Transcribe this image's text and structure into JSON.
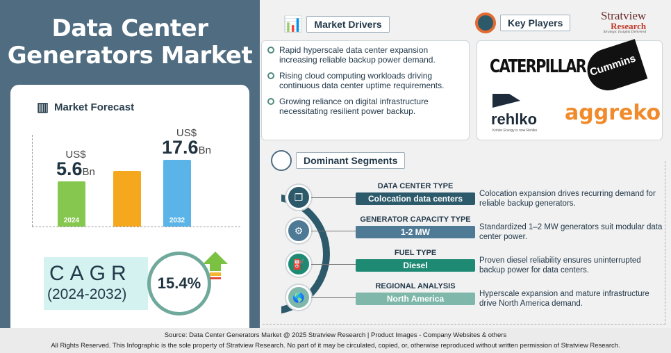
{
  "title": {
    "line1": "Data Center",
    "line2": "Generators Market"
  },
  "forecast": {
    "heading": "Market Forecast"
  },
  "chart_data": {
    "type": "bar",
    "categories": [
      "2024",
      "",
      "2032"
    ],
    "values": [
      5.6,
      null,
      17.6
    ],
    "value_prefix": "US$",
    "value_suffix": "Bn",
    "labels": [
      "5.6",
      "",
      "17.6"
    ],
    "colors": [
      "#86c750",
      "#f5a81d",
      "#5ab4e8"
    ]
  },
  "cagr": {
    "label": "CAGR",
    "period": "(2024-2032)",
    "value": "15.4%"
  },
  "drivers": {
    "heading": "Market Drivers",
    "items": [
      "Rapid hyperscale data center expansion increasing reliable backup power demand.",
      "Rising cloud computing workloads driving continuous data center uptime requirements.",
      "Growing reliance on digital infrastructure necessitating resilient power backup."
    ]
  },
  "players": {
    "heading": "Key Players",
    "logos": [
      "CATERPILLAR",
      "Cummins",
      "rehlko",
      "aggreko"
    ],
    "rehlko_tagline": "Kohler Energy is now Rehlko"
  },
  "brand": {
    "name1": "Stratview",
    "name2": "Research",
    "tagline": "Strategic Insights Delivered"
  },
  "segments": {
    "heading": "Dominant Segments",
    "items": [
      {
        "type": "DATA CENTER TYPE",
        "value": "Colocation data centers",
        "desc": "Colocation expansion drives recurring demand for reliable backup generators.",
        "color": "#2d5a6b"
      },
      {
        "type": "GENERATOR CAPACITY TYPE",
        "value": "1-2 MW",
        "desc": "Standardized 1–2 MW generators suit modular data center power.",
        "color": "#4e7a96"
      },
      {
        "type": "FUEL TYPE",
        "value": "Diesel",
        "desc": "Proven diesel reliability ensures uninterrupted backup power for data centers.",
        "color": "#1f8a74"
      },
      {
        "type": "REGIONAL ANALYSIS",
        "value": "North America",
        "desc": "Hyperscale expansion and mature infrastructure drive North America demand.",
        "color": "#7fb8aa"
      }
    ]
  },
  "footer": {
    "source": "Source:  Data Center Generators Market @ 2025 Stratview Research | Product Images  - Company Websites & others",
    "rights": "All Rights Reserved. This Infographic is the sole property of Stratview Research. No part of it may be circulated, copied, or, otherwise reproduced without written permission of Stratview Research."
  }
}
